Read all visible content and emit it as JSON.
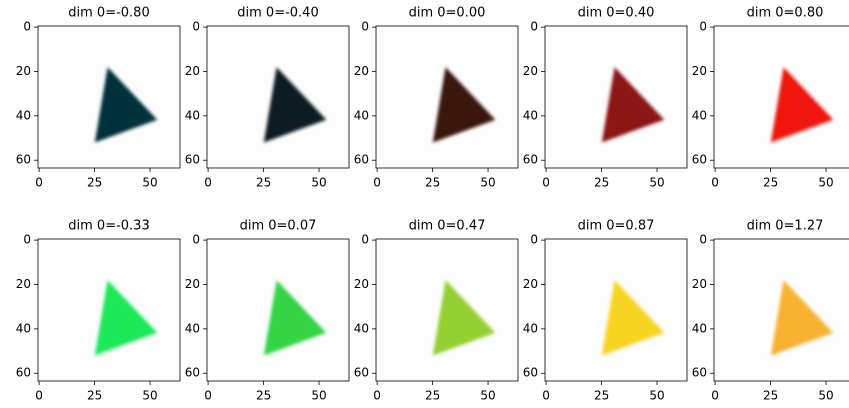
{
  "chart_data": [
    {
      "type": "image",
      "title": "dim 0=-0.80",
      "color": "#06303c",
      "xlim": [
        -0.5,
        63.5
      ],
      "ylim": [
        63.5,
        -0.5
      ],
      "xticks": [
        0,
        25,
        50
      ],
      "yticks": [
        0,
        20,
        40,
        60
      ]
    },
    {
      "type": "image",
      "title": "dim 0=-0.40",
      "color": "#0a1c22",
      "xlim": [
        -0.5,
        63.5
      ],
      "ylim": [
        63.5,
        -0.5
      ],
      "xticks": [
        0,
        25,
        50
      ],
      "yticks": [
        0,
        20,
        40,
        60
      ]
    },
    {
      "type": "image",
      "title": "dim 0=0.00",
      "color": "#3a1210",
      "xlim": [
        -0.5,
        63.5
      ],
      "ylim": [
        63.5,
        -0.5
      ],
      "xticks": [
        0,
        25,
        50
      ],
      "yticks": [
        0,
        20,
        40,
        60
      ]
    },
    {
      "type": "image",
      "title": "dim 0=0.40",
      "color": "#8c1412",
      "xlim": [
        -0.5,
        63.5
      ],
      "ylim": [
        63.5,
        -0.5
      ],
      "xticks": [
        0,
        25,
        50
      ],
      "yticks": [
        0,
        20,
        40,
        60
      ]
    },
    {
      "type": "image",
      "title": "dim 0=0.80",
      "color": "#f01410",
      "xlim": [
        -0.5,
        63.5
      ],
      "ylim": [
        63.5,
        -0.5
      ],
      "xticks": [
        0,
        25,
        50
      ],
      "yticks": [
        0,
        20,
        40,
        60
      ]
    },
    {
      "type": "image",
      "title": "dim 0=-0.33",
      "color": "#1ee858",
      "xlim": [
        -0.5,
        63.5
      ],
      "ylim": [
        63.5,
        -0.5
      ],
      "xticks": [
        0,
        25,
        50
      ],
      "yticks": [
        0,
        20,
        40,
        60
      ]
    },
    {
      "type": "image",
      "title": "dim 0=0.07",
      "color": "#34d444",
      "xlim": [
        -0.5,
        63.5
      ],
      "ylim": [
        63.5,
        -0.5
      ],
      "xticks": [
        0,
        25,
        50
      ],
      "yticks": [
        0,
        20,
        40,
        60
      ]
    },
    {
      "type": "image",
      "title": "dim 0=0.47",
      "color": "#94d032",
      "xlim": [
        -0.5,
        63.5
      ],
      "ylim": [
        63.5,
        -0.5
      ],
      "xticks": [
        0,
        25,
        50
      ],
      "yticks": [
        0,
        20,
        40,
        60
      ]
    },
    {
      "type": "image",
      "title": "dim 0=0.87",
      "color": "#f8d422",
      "xlim": [
        -0.5,
        63.5
      ],
      "ylim": [
        63.5,
        -0.5
      ],
      "xticks": [
        0,
        25,
        50
      ],
      "yticks": [
        0,
        20,
        40,
        60
      ]
    },
    {
      "type": "image",
      "title": "dim 0=1.27",
      "color": "#f8b232",
      "xlim": [
        -0.5,
        63.5
      ],
      "ylim": [
        63.5,
        -0.5
      ],
      "xticks": [
        0,
        25,
        50
      ],
      "yticks": [
        0,
        20,
        40,
        60
      ]
    }
  ]
}
